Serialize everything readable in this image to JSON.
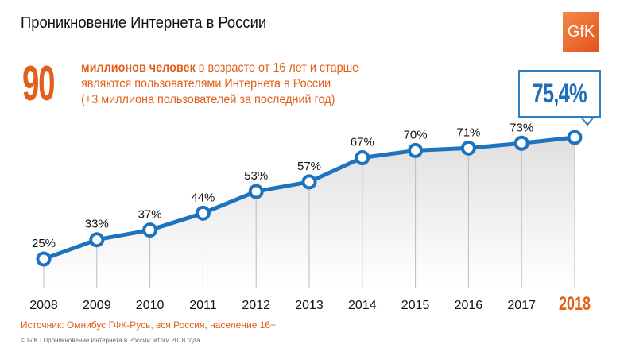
{
  "title": "Проникновение Интернета в России",
  "logo": "GfK",
  "headline": {
    "number": "90",
    "bold": "миллионов человек",
    "line1": " в возрасте от 16 лет и старше",
    "line2": "являются пользователями Интернета в России",
    "line3": "(+3 миллиона пользователей за последний год)"
  },
  "callout": "75,4%",
  "source": "Источник: Омнибус ГФК-Русь, вся Россия, население 16+",
  "footer": "© GfK | Проникновение Интернета в России: итоги 2018 года",
  "colors": {
    "line": "#1e73be",
    "accent": "#e2601a"
  },
  "chart_data": {
    "type": "line",
    "categories": [
      "2008",
      "2009",
      "2010",
      "2011",
      "2012",
      "2013",
      "2014",
      "2015",
      "2016",
      "2017",
      "2018"
    ],
    "values": [
      25,
      33,
      37,
      44,
      53,
      57,
      67,
      70,
      71,
      73,
      75.4
    ],
    "labels": [
      "25%",
      "33%",
      "37%",
      "44%",
      "53%",
      "57%",
      "67%",
      "70%",
      "71%",
      "73%",
      ""
    ],
    "highlight": "2018"
  }
}
